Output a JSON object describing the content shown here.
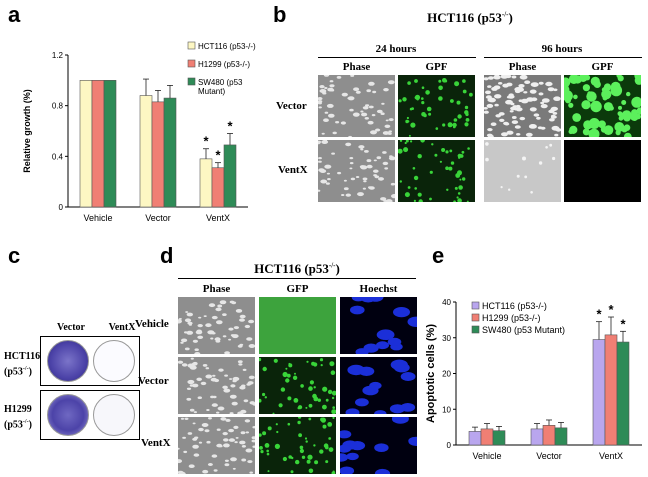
{
  "panels": {
    "a": {
      "letter": "a"
    },
    "b": {
      "letter": "b",
      "title": "HCT116 (p53-/-)",
      "time1": "24 hours",
      "time2": "96 hours",
      "col_phase": "Phase",
      "col_gpf": "GPF",
      "row_vector": "Vector",
      "row_ventx": "VentX"
    },
    "c": {
      "letter": "c",
      "col_vector": "Vector",
      "col_ventx": "VentX",
      "row1_line1": "HCT116",
      "row1_line2": "(p53-/-)",
      "row2_line1": "H1299",
      "row2_line2": "(p53-/-)"
    },
    "d": {
      "letter": "d",
      "title": "HCT116 (p53-/-)",
      "col_phase": "Phase",
      "col_gfp": "GFP",
      "col_hoechst": "Hoechst",
      "row_vehicle": "Vehicle",
      "row_vector": "Vector",
      "row_ventx": "VentX"
    },
    "e": {
      "letter": "e"
    }
  },
  "chart_data": [
    {
      "type": "bar",
      "panel": "a",
      "ylabel": "Relative growth (%)",
      "xlabel": "",
      "ylim": [
        0,
        1.2
      ],
      "yticks": [
        "0",
        "0.4",
        "0.8",
        "1.2"
      ],
      "categories": [
        "Vehicle",
        "Vector",
        "VentX"
      ],
      "series": [
        {
          "name": "HCT116 (p53-/-)",
          "color": "#fdf7c3",
          "values": [
            1.0,
            0.88,
            0.38
          ],
          "errors": [
            0,
            0.13,
            0.08
          ],
          "sig": [
            "",
            "",
            "*"
          ]
        },
        {
          "name": "H1299 (p53-/-)",
          "color": "#f07f74",
          "values": [
            1.0,
            0.83,
            0.31
          ],
          "errors": [
            0,
            0.09,
            0.04
          ],
          "sig": [
            "",
            "",
            "*"
          ]
        },
        {
          "name": "SW480 (p53 Mutant)",
          "color": "#2e8b57",
          "values": [
            1.0,
            0.86,
            0.49
          ],
          "errors": [
            0,
            0.1,
            0.09
          ],
          "sig": [
            "",
            "",
            "*"
          ]
        }
      ],
      "legend_position": "top-right"
    },
    {
      "type": "bar",
      "panel": "e",
      "ylabel": "Apoptotic cells (%)",
      "xlabel": "",
      "ylim": [
        0,
        40
      ],
      "yticks": [
        "0",
        "10",
        "20",
        "30",
        "40"
      ],
      "categories": [
        "Vehicle",
        "Vector",
        "VentX"
      ],
      "series": [
        {
          "name": "HCT116 (p53-/-)",
          "color": "#b9a6ee",
          "values": [
            3.8,
            4.5,
            29.5
          ],
          "errors": [
            1.2,
            1.5,
            5.0
          ],
          "sig": [
            "",
            "",
            "*"
          ]
        },
        {
          "name": "H1299 (p53-/-)",
          "color": "#f07f74",
          "values": [
            4.5,
            5.5,
            30.8
          ],
          "errors": [
            1.5,
            1.5,
            5.0
          ],
          "sig": [
            "",
            "",
            "*"
          ]
        },
        {
          "name": "SW480 (p53 Mutant)",
          "color": "#2e8b57",
          "values": [
            4.0,
            4.8,
            28.8
          ],
          "errors": [
            1.2,
            1.5,
            3.0
          ],
          "sig": [
            "",
            "",
            "*"
          ]
        }
      ],
      "legend_position": "top-left"
    }
  ]
}
